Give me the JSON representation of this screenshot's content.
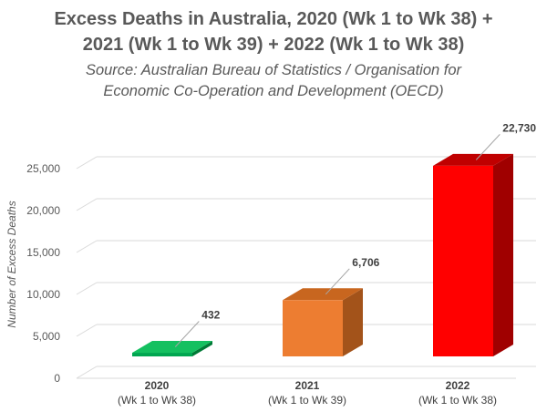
{
  "title_lines": [
    "Excess Deaths in Australia, 2020 (Wk 1 to Wk 38) +",
    "2021 (Wk 1 to Wk 39) + 2022 (Wk 1 to Wk 38)"
  ],
  "subtitle_lines": [
    "Source: Australian Bureau of Statistics / Organisation for",
    "Economic Co-Operation and Development (OECD)"
  ],
  "chart_data": {
    "type": "bar",
    "title": "Excess Deaths in Australia, 2020 (Wk 1 to Wk 38) + 2021 (Wk 1 to Wk 39) + 2022 (Wk 1 to Wk 38)",
    "xlabel": "",
    "ylabel": "Number of Excess Deaths",
    "ylim": [
      0,
      25000
    ],
    "yticks": [
      0,
      5000,
      10000,
      15000,
      20000,
      25000
    ],
    "ytick_labels": [
      "0",
      "5,000",
      "10,000",
      "15,000",
      "20,000",
      "25,000"
    ],
    "categories": [
      "2020",
      "2021",
      "2022"
    ],
    "category_sublabels": [
      "(Wk 1 to Wk 38)",
      "(Wk 1 to Wk 39)",
      "(Wk 1 to Wk 38)"
    ],
    "values": [
      432,
      6706,
      22730
    ],
    "value_labels": [
      "432",
      "6,706",
      "22,730"
    ],
    "colors": [
      {
        "front": "#00A650",
        "top": "#14C060",
        "side": "#007A36"
      },
      {
        "front": "#ED7D31",
        "top": "#C8661F",
        "side": "#A3531A"
      },
      {
        "front": "#FF0000",
        "top": "#C00000",
        "side": "#A00000"
      }
    ],
    "grid": true
  }
}
